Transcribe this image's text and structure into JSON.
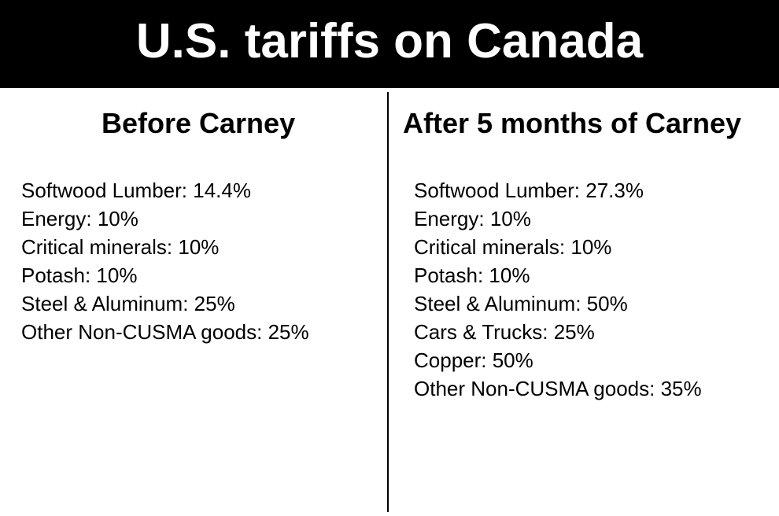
{
  "header": {
    "title": "U.S. tariffs on Canada"
  },
  "colors": {
    "header_background": "#000000",
    "header_text": "#ffffff",
    "body_background": "#ffffff",
    "body_text": "#000000"
  },
  "before": {
    "heading": "Before Carney",
    "items": [
      "Softwood Lumber: 14.4%",
      "Energy: 10%",
      "Critical minerals: 10%",
      "Potash: 10%",
      "Steel & Aluminum: 25%",
      "Other Non-CUSMA goods: 25%"
    ]
  },
  "after": {
    "heading": "After 5 months of Carney",
    "items": [
      "Softwood Lumber: 27.3%",
      "Energy: 10%",
      "Critical minerals: 10%",
      "Potash: 10%",
      "Steel & Aluminum: 50%",
      "Cars & Trucks: 25%",
      "Copper: 50%",
      "Other Non-CUSMA goods: 35%"
    ]
  }
}
